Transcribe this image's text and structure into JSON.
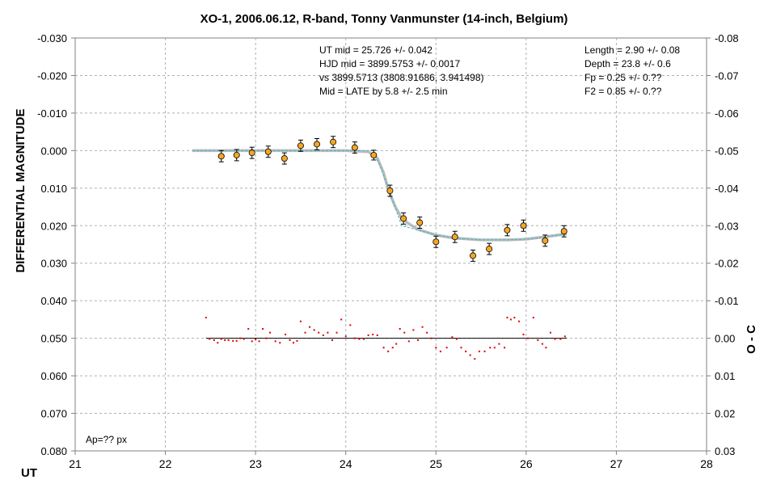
{
  "chart_data": {
    "type": "scatter",
    "title": "XO-1, 2006.06.12, R-band, Tonny Vanmunster (14-inch, Belgium)",
    "xlabel": "UT",
    "ylabel_left": "DIFFERENTIAL MAGNITUDE",
    "ylabel_right": "O - C",
    "xlim": [
      21,
      28
    ],
    "ylim_left": [
      -0.03,
      0.08
    ],
    "ylim_right": [
      -0.08,
      0.03
    ],
    "x_ticks": [
      "21",
      "22",
      "23",
      "24",
      "25",
      "26",
      "27",
      "28"
    ],
    "y_ticks_left": [
      "-0.030",
      "-0.020",
      "-0.010",
      "0.000",
      "0.010",
      "0.020",
      "0.030",
      "0.040",
      "0.050",
      "0.060",
      "0.070",
      "0.080"
    ],
    "y_ticks_right": [
      "-0.08",
      "-0.07",
      "-0.06",
      "-0.05",
      "-0.04",
      "-0.03",
      "-0.02",
      "-0.01",
      "0.00",
      "0.01",
      "0.02",
      "0.03"
    ],
    "y_inverted": true,
    "grid": true,
    "stats_center": [
      "UT mid = 25.726 +/- 0.042",
      "HJD mid = 3899.5753 +/- 0.0017",
      "vs 3899.5713  (3808.91686, 3.941498)",
      "Mid = LATE by 5.8 +/- 2.5 min"
    ],
    "stats_right": [
      "Length = 2.90 +/- 0.08",
      "Depth = 23.8 +/- 0.6",
      "Fp = 0.25 +/- 0.??",
      "F2 = 0.85 +/- 0.??"
    ],
    "note": "Ap=?? px",
    "colors": {
      "points": "#f5a623",
      "fit": "#bbbbbb",
      "model": "#33bbcc",
      "residuals": "#dd0000"
    },
    "binned_points": {
      "x": [
        22.62,
        22.79,
        22.96,
        23.14,
        23.32,
        23.5,
        23.68,
        23.86,
        24.1,
        24.31,
        24.49,
        24.64,
        24.82,
        25.0,
        25.21,
        25.41,
        25.59,
        25.79,
        25.97,
        26.21,
        26.42
      ],
      "y": [
        0.0015,
        0.0012,
        0.0006,
        0.0003,
        0.0021,
        -0.0013,
        -0.0017,
        -0.0023,
        -0.0008,
        0.0012,
        0.0107,
        0.0181,
        0.0192,
        0.0243,
        0.023,
        0.028,
        0.0262,
        0.0212,
        0.02,
        0.024,
        0.0215
      ],
      "err": [
        0.0015,
        0.0015,
        0.0015,
        0.0015,
        0.0015,
        0.0015,
        0.0015,
        0.0015,
        0.0015,
        0.0013,
        0.0015,
        0.0015,
        0.0015,
        0.0015,
        0.0015,
        0.0015,
        0.0015,
        0.0015,
        0.0015,
        0.0015,
        0.0015
      ]
    },
    "fit_curve": {
      "x": [
        22.3,
        23.0,
        23.5,
        24.0,
        24.25,
        24.35,
        24.42,
        24.48,
        24.55,
        24.62,
        24.7,
        24.8,
        25.0,
        25.2,
        25.5,
        25.8,
        26.0,
        26.2,
        26.45
      ],
      "y": [
        0.0,
        0.0,
        0.0,
        0.0,
        0.0003,
        0.002,
        0.006,
        0.011,
        0.015,
        0.018,
        0.0195,
        0.021,
        0.0225,
        0.0233,
        0.0238,
        0.0238,
        0.0236,
        0.023,
        0.0222
      ]
    },
    "model_curve": {
      "x": [
        22.3,
        24.3,
        24.38,
        24.62,
        25.0,
        25.2,
        25.5,
        25.8,
        26.0,
        26.2,
        26.45
      ],
      "y": [
        0.0,
        0.0,
        0.004,
        0.02,
        0.0225,
        0.0233,
        0.0238,
        0.0238,
        0.0236,
        0.023,
        0.0222
      ]
    },
    "residual_line": {
      "x": [
        22.45,
        26.45
      ],
      "y": 0.0
    },
    "residuals": {
      "x": [
        22.45,
        22.49,
        22.54,
        22.58,
        22.62,
        22.66,
        22.7,
        22.75,
        22.79,
        22.83,
        22.87,
        22.92,
        22.96,
        23.0,
        23.04,
        23.08,
        23.12,
        23.16,
        23.22,
        23.27,
        23.33,
        23.38,
        23.42,
        23.46,
        23.5,
        23.55,
        23.6,
        23.65,
        23.7,
        23.75,
        23.8,
        23.85,
        23.9,
        23.95,
        24.0,
        24.05,
        24.1,
        24.15,
        24.2,
        24.25,
        24.3,
        24.35,
        24.42,
        24.47,
        24.52,
        24.56,
        24.6,
        24.65,
        24.7,
        24.75,
        24.8,
        24.85,
        24.9,
        24.95,
        25.0,
        25.05,
        25.12,
        25.18,
        25.23,
        25.28,
        25.33,
        25.38,
        25.43,
        25.48,
        25.54,
        25.6,
        25.65,
        25.7,
        25.76,
        25.79,
        25.83,
        25.87,
        25.92,
        25.97,
        26.02,
        26.08,
        26.13,
        26.18,
        26.22,
        26.27,
        26.32,
        26.38,
        26.43
      ],
      "y": [
        -0.0055,
        0.0002,
        0.0005,
        0.0012,
        0.0002,
        0.0005,
        0.0005,
        0.0007,
        0.0007,
        0.0,
        0.0002,
        -0.0025,
        0.0008,
        0.0003,
        0.0008,
        -0.0025,
        0.0,
        -0.0015,
        0.0008,
        0.0012,
        -0.001,
        0.0005,
        0.0012,
        0.0007,
        -0.0045,
        -0.0015,
        -0.003,
        -0.0022,
        -0.0015,
        -0.0008,
        -0.0015,
        0.0005,
        -0.0015,
        -0.005,
        -0.0005,
        -0.0035,
        0.0,
        0.0002,
        0.0002,
        -0.0008,
        -0.001,
        -0.0008,
        0.0025,
        0.0035,
        0.0025,
        0.0015,
        -0.0025,
        -0.0015,
        0.0008,
        -0.0022,
        0.0005,
        -0.003,
        -0.0015,
        0.0,
        0.0025,
        0.0035,
        0.0025,
        -0.0003,
        0.0002,
        0.0025,
        0.0035,
        0.0045,
        0.0055,
        0.0035,
        0.0035,
        0.0025,
        0.0025,
        0.0015,
        0.0025,
        -0.0055,
        -0.005,
        -0.0055,
        -0.0045,
        -0.001,
        0.0,
        -0.0055,
        0.0005,
        0.0015,
        0.0025,
        -0.0015,
        0.0002,
        0.0002,
        -0.0005
      ]
    }
  }
}
